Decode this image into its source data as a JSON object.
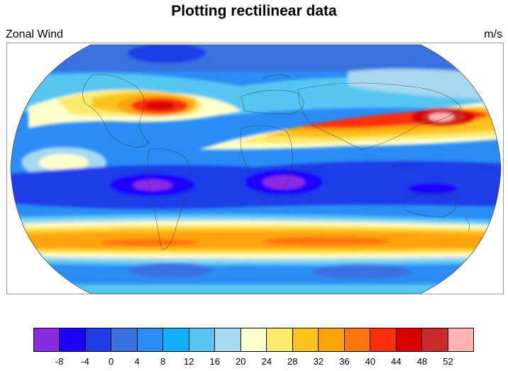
{
  "figure": {
    "title": "Plotting rectilinear data",
    "left_string": "Zonal Wind",
    "right_string": "m/s"
  },
  "map": {
    "projection": "Robinson",
    "field": "zonal wind",
    "features": [
      "coastlines"
    ]
  },
  "colorbar": {
    "orientation": "horizontal",
    "colors": [
      "#8a2be2",
      "#1a00ff",
      "#1f3ce8",
      "#3a6fe0",
      "#2a8cf5",
      "#10b0ff",
      "#55c6f2",
      "#a6d8f0",
      "#ffffce",
      "#fde96c",
      "#fcc31d",
      "#fca30a",
      "#fc7510",
      "#fc2e0c",
      "#dc0000",
      "#cc2a2a",
      "#ffb3b3"
    ],
    "labels": [
      "-8",
      "-4",
      "0",
      "4",
      "8",
      "12",
      "16",
      "20",
      "24",
      "28",
      "32",
      "36",
      "40",
      "44",
      "48",
      "52"
    ]
  }
}
